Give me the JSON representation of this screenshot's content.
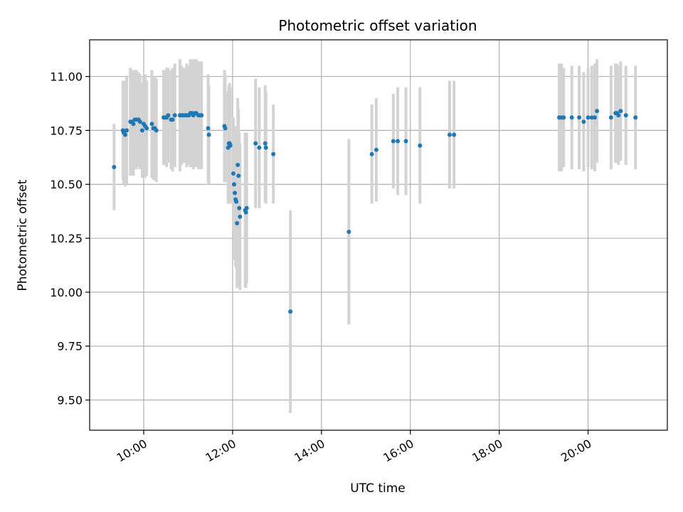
{
  "chart_data": {
    "type": "scatter",
    "title": "Photometric offset variation",
    "xlabel": "UTC time",
    "ylabel": "Photometric offset",
    "xlim": [
      "08:47",
      "21:47"
    ],
    "ylim": [
      9.36,
      11.17
    ],
    "x_ticks": [
      "10:00",
      "12:00",
      "14:00",
      "16:00",
      "18:00",
      "20:00"
    ],
    "y_ticks": [
      "9.50",
      "9.75",
      "10.00",
      "10.25",
      "10.50",
      "10.75",
      "11.00"
    ],
    "grid": true,
    "colors": {
      "point": "#1f77b4",
      "errorbar": "#d3d3d3",
      "grid": "#b0b0b0"
    },
    "points": [
      {
        "x": "09:20",
        "y": 10.58,
        "err": 0.2
      },
      {
        "x": "09:32",
        "y": 10.75,
        "err": 0.23
      },
      {
        "x": "09:33",
        "y": 10.74,
        "err": 0.24
      },
      {
        "x": "09:35",
        "y": 10.73,
        "err": 0.24
      },
      {
        "x": "09:37",
        "y": 10.75,
        "err": 0.25
      },
      {
        "x": "09:42",
        "y": 10.79,
        "err": 0.25
      },
      {
        "x": "09:44",
        "y": 10.79,
        "err": 0.24
      },
      {
        "x": "09:46",
        "y": 10.78,
        "err": 0.24
      },
      {
        "x": "09:48",
        "y": 10.8,
        "err": 0.23
      },
      {
        "x": "09:50",
        "y": 10.8,
        "err": 0.23
      },
      {
        "x": "09:53",
        "y": 10.8,
        "err": 0.22
      },
      {
        "x": "09:55",
        "y": 10.79,
        "err": 0.22
      },
      {
        "x": "09:58",
        "y": 10.75,
        "err": 0.22
      },
      {
        "x": "10:00",
        "y": 10.78,
        "err": 0.22
      },
      {
        "x": "10:02",
        "y": 10.77,
        "err": 0.24
      },
      {
        "x": "10:04",
        "y": 10.76,
        "err": 0.22
      },
      {
        "x": "10:11",
        "y": 10.78,
        "err": 0.25
      },
      {
        "x": "10:13",
        "y": 10.76,
        "err": 0.24
      },
      {
        "x": "10:15",
        "y": 10.76,
        "err": 0.24
      },
      {
        "x": "10:17",
        "y": 10.75,
        "err": 0.24
      },
      {
        "x": "10:27",
        "y": 10.81,
        "err": 0.22
      },
      {
        "x": "10:29",
        "y": 10.81,
        "err": 0.22
      },
      {
        "x": "10:31",
        "y": 10.81,
        "err": 0.23
      },
      {
        "x": "10:33",
        "y": 10.82,
        "err": 0.22
      },
      {
        "x": "10:37",
        "y": 10.8,
        "err": 0.23
      },
      {
        "x": "10:39",
        "y": 10.8,
        "err": 0.24
      },
      {
        "x": "10:42",
        "y": 10.82,
        "err": 0.24
      },
      {
        "x": "10:49",
        "y": 10.82,
        "err": 0.26
      },
      {
        "x": "10:51",
        "y": 10.82,
        "err": 0.23
      },
      {
        "x": "10:53",
        "y": 10.82,
        "err": 0.22
      },
      {
        "x": "10:56",
        "y": 10.82,
        "err": 0.22
      },
      {
        "x": "10:58",
        "y": 10.82,
        "err": 0.24
      },
      {
        "x": "11:01",
        "y": 10.82,
        "err": 0.23
      },
      {
        "x": "11:03",
        "y": 10.83,
        "err": 0.25
      },
      {
        "x": "11:05",
        "y": 10.83,
        "err": 0.25
      },
      {
        "x": "11:07",
        "y": 10.82,
        "err": 0.25
      },
      {
        "x": "11:09",
        "y": 10.83,
        "err": 0.25
      },
      {
        "x": "11:11",
        "y": 10.83,
        "err": 0.25
      },
      {
        "x": "11:14",
        "y": 10.82,
        "err": 0.25
      },
      {
        "x": "11:16",
        "y": 10.82,
        "err": 0.25
      },
      {
        "x": "11:18",
        "y": 10.82,
        "err": 0.25
      },
      {
        "x": "11:27",
        "y": 10.76,
        "err": 0.25
      },
      {
        "x": "11:28",
        "y": 10.73,
        "err": 0.23
      },
      {
        "x": "11:49",
        "y": 10.77,
        "err": 0.26
      },
      {
        "x": "11:50",
        "y": 10.76,
        "err": 0.25
      },
      {
        "x": "11:54",
        "y": 10.67,
        "err": 0.26
      },
      {
        "x": "11:55",
        "y": 10.69,
        "err": 0.27
      },
      {
        "x": "11:56",
        "y": 10.69,
        "err": 0.28
      },
      {
        "x": "11:57",
        "y": 10.68,
        "err": 0.27
      },
      {
        "x": "12:01",
        "y": 10.55,
        "err": 0.26
      },
      {
        "x": "12:02",
        "y": 10.5,
        "err": 0.25
      },
      {
        "x": "12:03",
        "y": 10.46,
        "err": 0.31
      },
      {
        "x": "12:04",
        "y": 10.43,
        "err": 0.31
      },
      {
        "x": "12:05",
        "y": 10.42,
        "err": 0.31
      },
      {
        "x": "12:06",
        "y": 10.32,
        "err": 0.3
      },
      {
        "x": "12:07",
        "y": 10.59,
        "err": 0.31
      },
      {
        "x": "12:08",
        "y": 10.54,
        "err": 0.31
      },
      {
        "x": "12:09",
        "y": 10.39,
        "err": 0.35
      },
      {
        "x": "12:10",
        "y": 10.35,
        "err": 0.34
      },
      {
        "x": "12:17",
        "y": 10.38,
        "err": 0.36
      },
      {
        "x": "12:18",
        "y": 10.37,
        "err": 0.35
      },
      {
        "x": "12:19",
        "y": 10.39,
        "err": 0.35
      },
      {
        "x": "12:31",
        "y": 10.69,
        "err": 0.3
      },
      {
        "x": "12:36",
        "y": 10.67,
        "err": 0.28
      },
      {
        "x": "12:44",
        "y": 10.69,
        "err": 0.27
      },
      {
        "x": "12:45",
        "y": 10.67,
        "err": 0.26
      },
      {
        "x": "12:55",
        "y": 10.64,
        "err": 0.23
      },
      {
        "x": "13:18",
        "y": 9.91,
        "err": 0.47
      },
      {
        "x": "14:37",
        "y": 10.28,
        "err": 0.43
      },
      {
        "x": "15:08",
        "y": 10.64,
        "err": 0.23
      },
      {
        "x": "15:14",
        "y": 10.66,
        "err": 0.24
      },
      {
        "x": "15:37",
        "y": 10.7,
        "err": 0.22
      },
      {
        "x": "15:43",
        "y": 10.7,
        "err": 0.25
      },
      {
        "x": "15:54",
        "y": 10.7,
        "err": 0.25
      },
      {
        "x": "16:13",
        "y": 10.68,
        "err": 0.27
      },
      {
        "x": "16:53",
        "y": 10.73,
        "err": 0.25
      },
      {
        "x": "16:59",
        "y": 10.73,
        "err": 0.25
      },
      {
        "x": "19:21",
        "y": 10.81,
        "err": 0.25
      },
      {
        "x": "19:24",
        "y": 10.81,
        "err": 0.25
      },
      {
        "x": "19:27",
        "y": 10.81,
        "err": 0.23
      },
      {
        "x": "19:38",
        "y": 10.81,
        "err": 0.24
      },
      {
        "x": "19:48",
        "y": 10.81,
        "err": 0.24
      },
      {
        "x": "19:54",
        "y": 10.79,
        "err": 0.23
      },
      {
        "x": "20:00",
        "y": 10.81,
        "err": 0.23
      },
      {
        "x": "20:05",
        "y": 10.81,
        "err": 0.24
      },
      {
        "x": "20:09",
        "y": 10.81,
        "err": 0.25
      },
      {
        "x": "20:12",
        "y": 10.84,
        "err": 0.24
      },
      {
        "x": "20:31",
        "y": 10.81,
        "err": 0.24
      },
      {
        "x": "20:37",
        "y": 10.83,
        "err": 0.23
      },
      {
        "x": "20:39",
        "y": 10.83,
        "err": 0.23
      },
      {
        "x": "20:41",
        "y": 10.82,
        "err": 0.23
      },
      {
        "x": "20:44",
        "y": 10.84,
        "err": 0.23
      },
      {
        "x": "20:51",
        "y": 10.82,
        "err": 0.23
      },
      {
        "x": "21:04",
        "y": 10.81,
        "err": 0.24
      }
    ]
  }
}
